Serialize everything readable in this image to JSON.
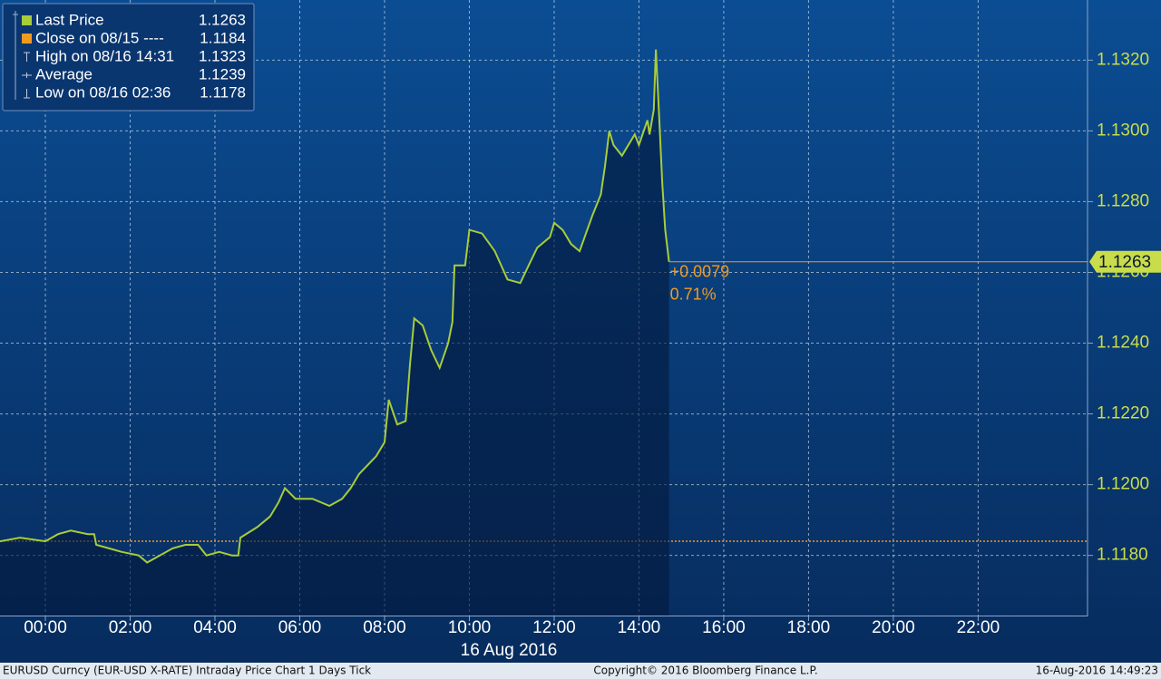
{
  "chart_data": {
    "type": "line",
    "x": [
      -1.07,
      -0.6,
      0,
      0.3,
      0.6,
      1.0,
      1.15,
      1.2,
      1.5,
      1.8,
      2.2,
      2.4,
      2.7,
      3.0,
      3.3,
      3.6,
      3.8,
      4.1,
      4.4,
      4.55,
      4.6,
      5.0,
      5.3,
      5.5,
      5.65,
      5.9,
      6.3,
      6.7,
      7.0,
      7.2,
      7.4,
      7.8,
      8.0,
      8.1,
      8.3,
      8.5,
      8.6,
      8.7,
      8.9,
      9.1,
      9.3,
      9.5,
      9.6,
      9.65,
      9.9,
      10.0,
      10.3,
      10.6,
      10.9,
      11.2,
      11.4,
      11.6,
      11.9,
      12.0,
      12.2,
      12.4,
      12.6,
      12.9,
      13.1,
      13.2,
      13.3,
      13.4,
      13.6,
      13.9,
      14.0,
      14.2,
      14.25,
      14.35,
      14.4,
      14.48,
      14.55,
      14.62,
      14.71
    ],
    "series": [
      {
        "name": "Last Price",
        "color": "#a8cc3a",
        "values": [
          1.1184,
          1.1185,
          1.1184,
          1.1186,
          1.1187,
          1.1186,
          1.1186,
          1.1183,
          1.1182,
          1.1181,
          1.118,
          1.1178,
          1.118,
          1.1182,
          1.1183,
          1.1183,
          1.118,
          1.1181,
          1.118,
          1.118,
          1.1185,
          1.1188,
          1.1191,
          1.1195,
          1.1199,
          1.1196,
          1.1196,
          1.1194,
          1.1196,
          1.1199,
          1.1203,
          1.1208,
          1.1212,
          1.1224,
          1.1217,
          1.1218,
          1.1234,
          1.1247,
          1.1245,
          1.1238,
          1.1233,
          1.124,
          1.1246,
          1.1262,
          1.1262,
          1.1272,
          1.1271,
          1.1266,
          1.1258,
          1.1257,
          1.1262,
          1.1267,
          1.127,
          1.1274,
          1.1272,
          1.1268,
          1.1266,
          1.1276,
          1.1282,
          1.129,
          1.13,
          1.1296,
          1.1293,
          1.1299,
          1.1296,
          1.1303,
          1.1299,
          1.1306,
          1.1323,
          1.1303,
          1.1285,
          1.1272,
          1.1263
        ]
      }
    ],
    "xlim": [
      -1.07,
      24.58
    ],
    "xticks": [
      {
        "value": 0,
        "label": "00:00"
      },
      {
        "value": 2,
        "label": "02:00"
      },
      {
        "value": 4,
        "label": "04:00"
      },
      {
        "value": 6,
        "label": "06:00"
      },
      {
        "value": 8,
        "label": "08:00"
      },
      {
        "value": 10,
        "label": "10:00"
      },
      {
        "value": 12,
        "label": "12:00"
      },
      {
        "value": 14,
        "label": "14:00"
      },
      {
        "value": 16,
        "label": "16:00"
      },
      {
        "value": 18,
        "label": "18:00"
      },
      {
        "value": 20,
        "label": "20:00"
      },
      {
        "value": 22,
        "label": "22:00"
      }
    ],
    "xlabel": "16 Aug 2016",
    "ylim": [
      1.1163,
      1.1337
    ],
    "yticks": [
      {
        "value": 1.118,
        "label": "1.1180"
      },
      {
        "value": 1.12,
        "label": "1.1200"
      },
      {
        "value": 1.122,
        "label": "1.1220"
      },
      {
        "value": 1.124,
        "label": "1.1240"
      },
      {
        "value": 1.126,
        "label": "1.1260"
      },
      {
        "value": 1.128,
        "label": "1.1280"
      },
      {
        "value": 1.13,
        "label": "1.1300"
      },
      {
        "value": 1.132,
        "label": "1.1320"
      }
    ],
    "grid": true,
    "legend": [
      {
        "name": "Last Price",
        "value": 1.1263
      },
      {
        "name": "Close on 08/15 ----",
        "value": 1.1184,
        "color": "#f29a1f"
      },
      {
        "name": "High on 08/16 14:31",
        "value": 1.1323
      },
      {
        "name": "Average",
        "value": 1.1239
      },
      {
        "name": "Low on 08/16 02:36",
        "value": 1.1178
      }
    ],
    "last_line_color": "#f29a1f",
    "change_label": "+0.0079",
    "change_pct_label": "0.71%",
    "footer": {
      "left": "EURUSD Curncy (EUR-USD X-RATE) Intraday Price Chart 1 Days  Tick",
      "center": "Copyright© 2016 Bloomberg Finance L.P.",
      "right": "16-Aug-2016 14:49:23"
    }
  }
}
